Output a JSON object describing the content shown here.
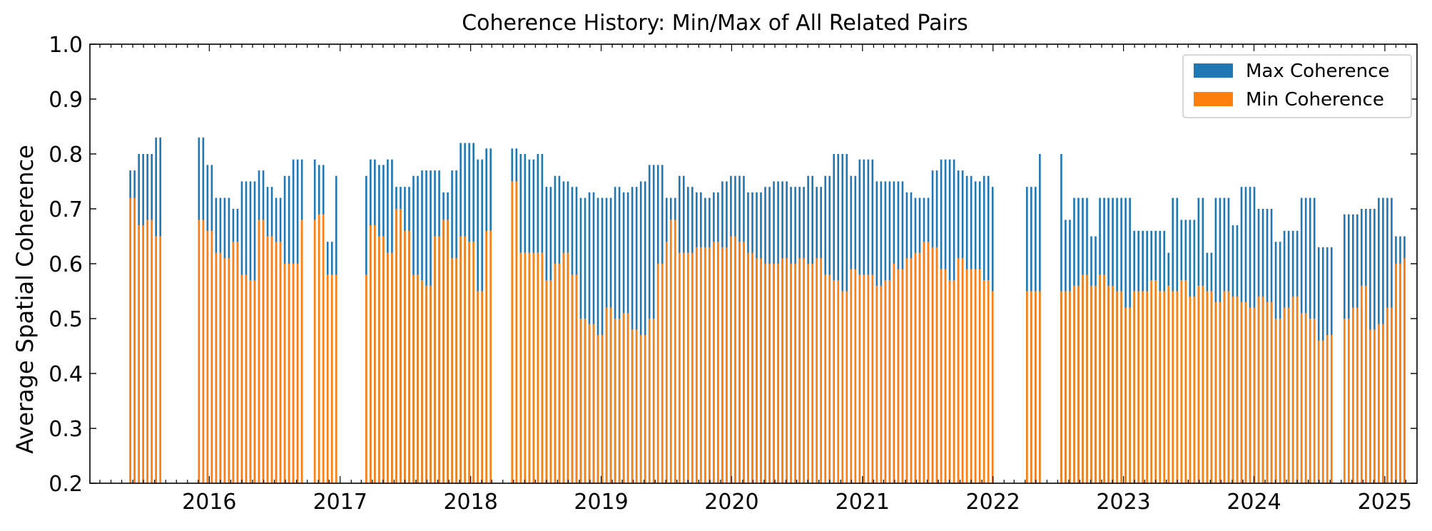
{
  "chart_data": {
    "type": "bar",
    "title": "Coherence History: Min/Max of All Related Pairs",
    "xlabel": "",
    "ylabel": "Average Spatial Coherence",
    "ylim": [
      0.2,
      1.0
    ],
    "xlim": [
      "2015-02-01",
      "2025-04-01"
    ],
    "yticks": [
      "0.2",
      "0.3",
      "0.4",
      "0.5",
      "0.6",
      "0.7",
      "0.8",
      "0.9",
      "1.0"
    ],
    "xticks": [
      {
        "label": "2016",
        "date": "2016-01-01"
      },
      {
        "label": "2017",
        "date": "2017-01-01"
      },
      {
        "label": "2018",
        "date": "2018-01-01"
      },
      {
        "label": "2019",
        "date": "2019-01-01"
      },
      {
        "label": "2020",
        "date": "2020-01-01"
      },
      {
        "label": "2021",
        "date": "2021-01-01"
      },
      {
        "label": "2022",
        "date": "2022-01-01"
      },
      {
        "label": "2023",
        "date": "2023-01-01"
      },
      {
        "label": "2024",
        "date": "2024-01-01"
      },
      {
        "label": "2025",
        "date": "2025-01-01"
      }
    ],
    "legend_position": "top-right",
    "grid": false,
    "series": [
      {
        "name": "Max Coherence",
        "color": "#1f77b4",
        "values": [
          0.77,
          0.8,
          0.8,
          0.83,
          0.83,
          0.78,
          0.72,
          0.72,
          0.7,
          0.75,
          0.75,
          0.77,
          0.74,
          0.72,
          0.76,
          0.79,
          0.79,
          0.78,
          0.64,
          0.76,
          0.79,
          0.78,
          0.79,
          0.74,
          0.74,
          0.76,
          0.77,
          0.77,
          0.77,
          0.73,
          0.77,
          0.82,
          0.82,
          0.79,
          0.81,
          0.81,
          0.8,
          0.79,
          0.8,
          0.74,
          0.76,
          0.75,
          0.74,
          0.72,
          0.73,
          0.72,
          0.72,
          0.74,
          0.73,
          0.74,
          0.75,
          0.78,
          0.78,
          0.72,
          0.72,
          0.76,
          0.74,
          0.73,
          0.72,
          0.73,
          0.75,
          0.76,
          0.76,
          0.73,
          0.73,
          0.74,
          0.75,
          0.75,
          0.74,
          0.74,
          0.76,
          0.74,
          0.76,
          0.8,
          0.8,
          0.76,
          0.79,
          0.79,
          0.75,
          0.75,
          0.75,
          0.75,
          0.73,
          0.72,
          0.72,
          0.77,
          0.79,
          0.79,
          0.77,
          0.76,
          0.75,
          0.76,
          0.74,
          0.74,
          0.8,
          0.68,
          0.72,
          0.72,
          0.65,
          0.72,
          0.72,
          0.72,
          0.72,
          0.66,
          0.66,
          0.66,
          0.66,
          0.62,
          0.72,
          0.68,
          0.68,
          0.72,
          0.62,
          0.72,
          0.72,
          0.67,
          0.74,
          0.74,
          0.7,
          0.7,
          0.64,
          0.66,
          0.66,
          0.72,
          0.72,
          0.63,
          0.63,
          0.69,
          0.69,
          0.7,
          0.7,
          0.72,
          0.72,
          0.65,
          0.65
        ]
      },
      {
        "name": "Min Coherence",
        "color": "#ff7f0e",
        "values": [
          0.72,
          0.67,
          0.68,
          0.65,
          0.68,
          0.66,
          0.62,
          0.61,
          0.64,
          0.58,
          0.57,
          0.68,
          0.65,
          0.64,
          0.6,
          0.6,
          0.68,
          0.69,
          0.58,
          0.58,
          0.67,
          0.65,
          0.62,
          0.7,
          0.66,
          0.58,
          0.57,
          0.56,
          0.65,
          0.68,
          0.61,
          0.65,
          0.64,
          0.55,
          0.66,
          0.75,
          0.62,
          0.62,
          0.62,
          0.57,
          0.6,
          0.62,
          0.58,
          0.5,
          0.49,
          0.47,
          0.52,
          0.5,
          0.51,
          0.48,
          0.47,
          0.5,
          0.6,
          0.64,
          0.68,
          0.62,
          0.62,
          0.63,
          0.63,
          0.64,
          0.63,
          0.65,
          0.64,
          0.62,
          0.61,
          0.6,
          0.6,
          0.61,
          0.6,
          0.61,
          0.6,
          0.61,
          0.58,
          0.57,
          0.55,
          0.59,
          0.58,
          0.58,
          0.56,
          0.57,
          0.6,
          0.59,
          0.61,
          0.62,
          0.64,
          0.63,
          0.59,
          0.57,
          0.61,
          0.59,
          0.59,
          0.57,
          0.55,
          0.55,
          0.55,
          0.55,
          0.56,
          0.58,
          0.56,
          0.58,
          0.56,
          0.55,
          0.52,
          0.55,
          0.55,
          0.57,
          0.55,
          0.56,
          0.55,
          0.57,
          0.54,
          0.56,
          0.55,
          0.53,
          0.55,
          0.54,
          0.53,
          0.52,
          0.54,
          0.53,
          0.5,
          0.52,
          0.54,
          0.51,
          0.5,
          0.46,
          0.47,
          0.5,
          0.52,
          0.56,
          0.48,
          0.49,
          0.52,
          0.6,
          0.61
        ]
      }
    ],
    "gaps": [
      [
        "2015-08-20",
        "2015-11-25"
      ],
      [
        "2016-09-20",
        "2016-10-20"
      ],
      [
        "2017-01-01",
        "2017-03-05"
      ],
      [
        "2018-03-01",
        "2018-04-15"
      ],
      [
        "2022-01-10",
        "2022-04-01"
      ],
      [
        "2022-05-15",
        "2022-07-01"
      ],
      [
        "2024-08-15",
        "2024-09-05"
      ]
    ],
    "x_start": "2015-05-25",
    "x_end": "2025-02-25"
  }
}
